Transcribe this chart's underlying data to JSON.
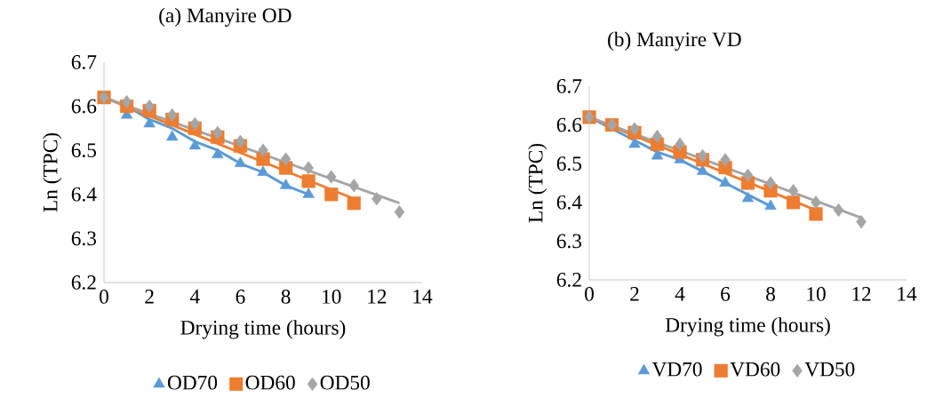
{
  "chart_data": [
    {
      "type": "scatter",
      "title": "(a) Manyire OD",
      "xlabel": "Drying time (hours)",
      "ylabel": "Ln (TPC)",
      "xlim": [
        0,
        14
      ],
      "ylim": [
        6.2,
        6.7
      ],
      "xticks": [
        0,
        2,
        4,
        6,
        8,
        10,
        12,
        14
      ],
      "yticks": [
        6.2,
        6.3,
        6.4,
        6.5,
        6.6,
        6.7
      ],
      "grid": false,
      "legend": "bottom",
      "series": [
        {
          "name": "OD70",
          "color": "#5b9bd5",
          "marker": "triangle",
          "x": [
            1,
            2,
            3,
            4,
            5,
            6,
            7,
            8,
            9
          ],
          "values": [
            6.58,
            6.56,
            6.53,
            6.51,
            6.49,
            6.47,
            6.45,
            6.42,
            6.4
          ]
        },
        {
          "name": "OD60",
          "color": "#ed7d31",
          "marker": "square",
          "x": [
            0,
            1,
            2,
            3,
            4,
            5,
            6,
            7,
            8,
            9,
            10,
            11
          ],
          "values": [
            6.62,
            6.6,
            6.59,
            6.57,
            6.55,
            6.53,
            6.51,
            6.48,
            6.46,
            6.43,
            6.4,
            6.38
          ]
        },
        {
          "name": "OD50",
          "color": "#a5a5a5",
          "marker": "diamond",
          "x": [
            0,
            1,
            2,
            3,
            4,
            5,
            6,
            7,
            8,
            9,
            10,
            11,
            12,
            13
          ],
          "values": [
            6.62,
            6.61,
            6.6,
            6.58,
            6.56,
            6.54,
            6.52,
            6.5,
            6.48,
            6.46,
            6.44,
            6.42,
            6.39,
            6.36
          ]
        },
        {
          "type": "line",
          "color": "#5b9bd5",
          "x": [
            0,
            1,
            2,
            3,
            4,
            5,
            6,
            7,
            8,
            9
          ],
          "values": [
            6.62,
            6.6,
            6.57,
            6.55,
            6.52,
            6.5,
            6.47,
            6.45,
            6.42,
            6.4
          ]
        },
        {
          "type": "line",
          "color": "#ed7d31",
          "x": [
            0,
            11
          ],
          "values": [
            6.62,
            6.39
          ]
        },
        {
          "type": "line",
          "color": "#a5a5a5",
          "x": [
            0,
            13
          ],
          "values": [
            6.62,
            6.38
          ]
        }
      ]
    },
    {
      "type": "scatter",
      "title": "(b) Manyire VD",
      "xlabel": "Drying time (hours)",
      "ylabel": "Ln (TPC)",
      "xlim": [
        0,
        14
      ],
      "ylim": [
        6.2,
        6.7
      ],
      "xticks": [
        0,
        2,
        4,
        6,
        8,
        10,
        12,
        14
      ],
      "yticks": [
        6.2,
        6.3,
        6.4,
        6.5,
        6.6,
        6.7
      ],
      "grid": false,
      "legend": "bottom",
      "series": [
        {
          "name": "VD70",
          "color": "#5b9bd5",
          "marker": "triangle",
          "x": [
            2,
            3,
            4,
            5,
            6,
            7,
            8
          ],
          "values": [
            6.55,
            6.52,
            6.51,
            6.48,
            6.45,
            6.41,
            6.39
          ]
        },
        {
          "name": "VD60",
          "color": "#ed7d31",
          "marker": "square",
          "x": [
            0,
            1,
            2,
            3,
            4,
            5,
            6,
            7,
            8,
            9,
            10
          ],
          "values": [
            6.62,
            6.6,
            6.58,
            6.55,
            6.53,
            6.51,
            6.49,
            6.45,
            6.43,
            6.4,
            6.37
          ]
        },
        {
          "name": "VD50",
          "color": "#a5a5a5",
          "marker": "diamond",
          "x": [
            0,
            1,
            2,
            3,
            4,
            5,
            6,
            7,
            8,
            9,
            10,
            11,
            12
          ],
          "values": [
            6.62,
            6.6,
            6.59,
            6.57,
            6.55,
            6.52,
            6.51,
            6.47,
            6.45,
            6.43,
            6.4,
            6.38,
            6.35
          ]
        },
        {
          "type": "line",
          "color": "#5b9bd5",
          "x": [
            0,
            1,
            2,
            3,
            4,
            5,
            6,
            7,
            8
          ],
          "values": [
            6.62,
            6.59,
            6.56,
            6.53,
            6.51,
            6.48,
            6.45,
            6.42,
            6.39
          ]
        },
        {
          "type": "line",
          "color": "#ed7d31",
          "x": [
            0,
            10
          ],
          "values": [
            6.62,
            6.38
          ]
        },
        {
          "type": "line",
          "color": "#a5a5a5",
          "x": [
            0,
            12
          ],
          "values": [
            6.62,
            6.36
          ]
        }
      ]
    }
  ]
}
